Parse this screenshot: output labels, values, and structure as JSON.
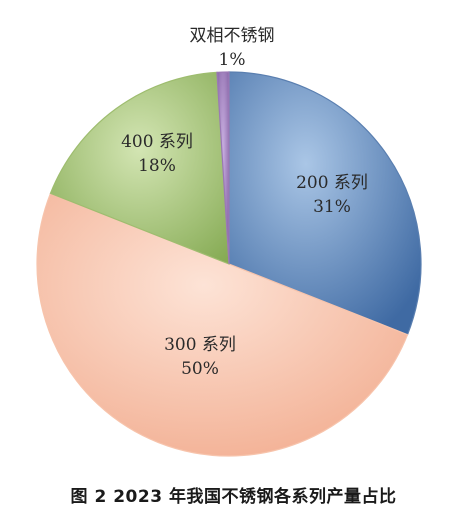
{
  "chart_data": {
    "type": "pie",
    "title": "图 2 2023 年我国不锈钢各系列产量占比",
    "start_angle_deg": 0,
    "slices": [
      {
        "label": "200 系列",
        "percent_label": "31%",
        "value": 31,
        "color": "#5a7fb0"
      },
      {
        "label": "300 系列",
        "percent_label": "50%",
        "value": 50,
        "color": "#f7c4ac"
      },
      {
        "label": "400 系列",
        "percent_label": "18%",
        "value": 18,
        "color": "#9ebd6f"
      },
      {
        "label": "双相不锈钢",
        "percent_label": "1%",
        "value": 1,
        "color": "#9b79b5"
      }
    ]
  }
}
